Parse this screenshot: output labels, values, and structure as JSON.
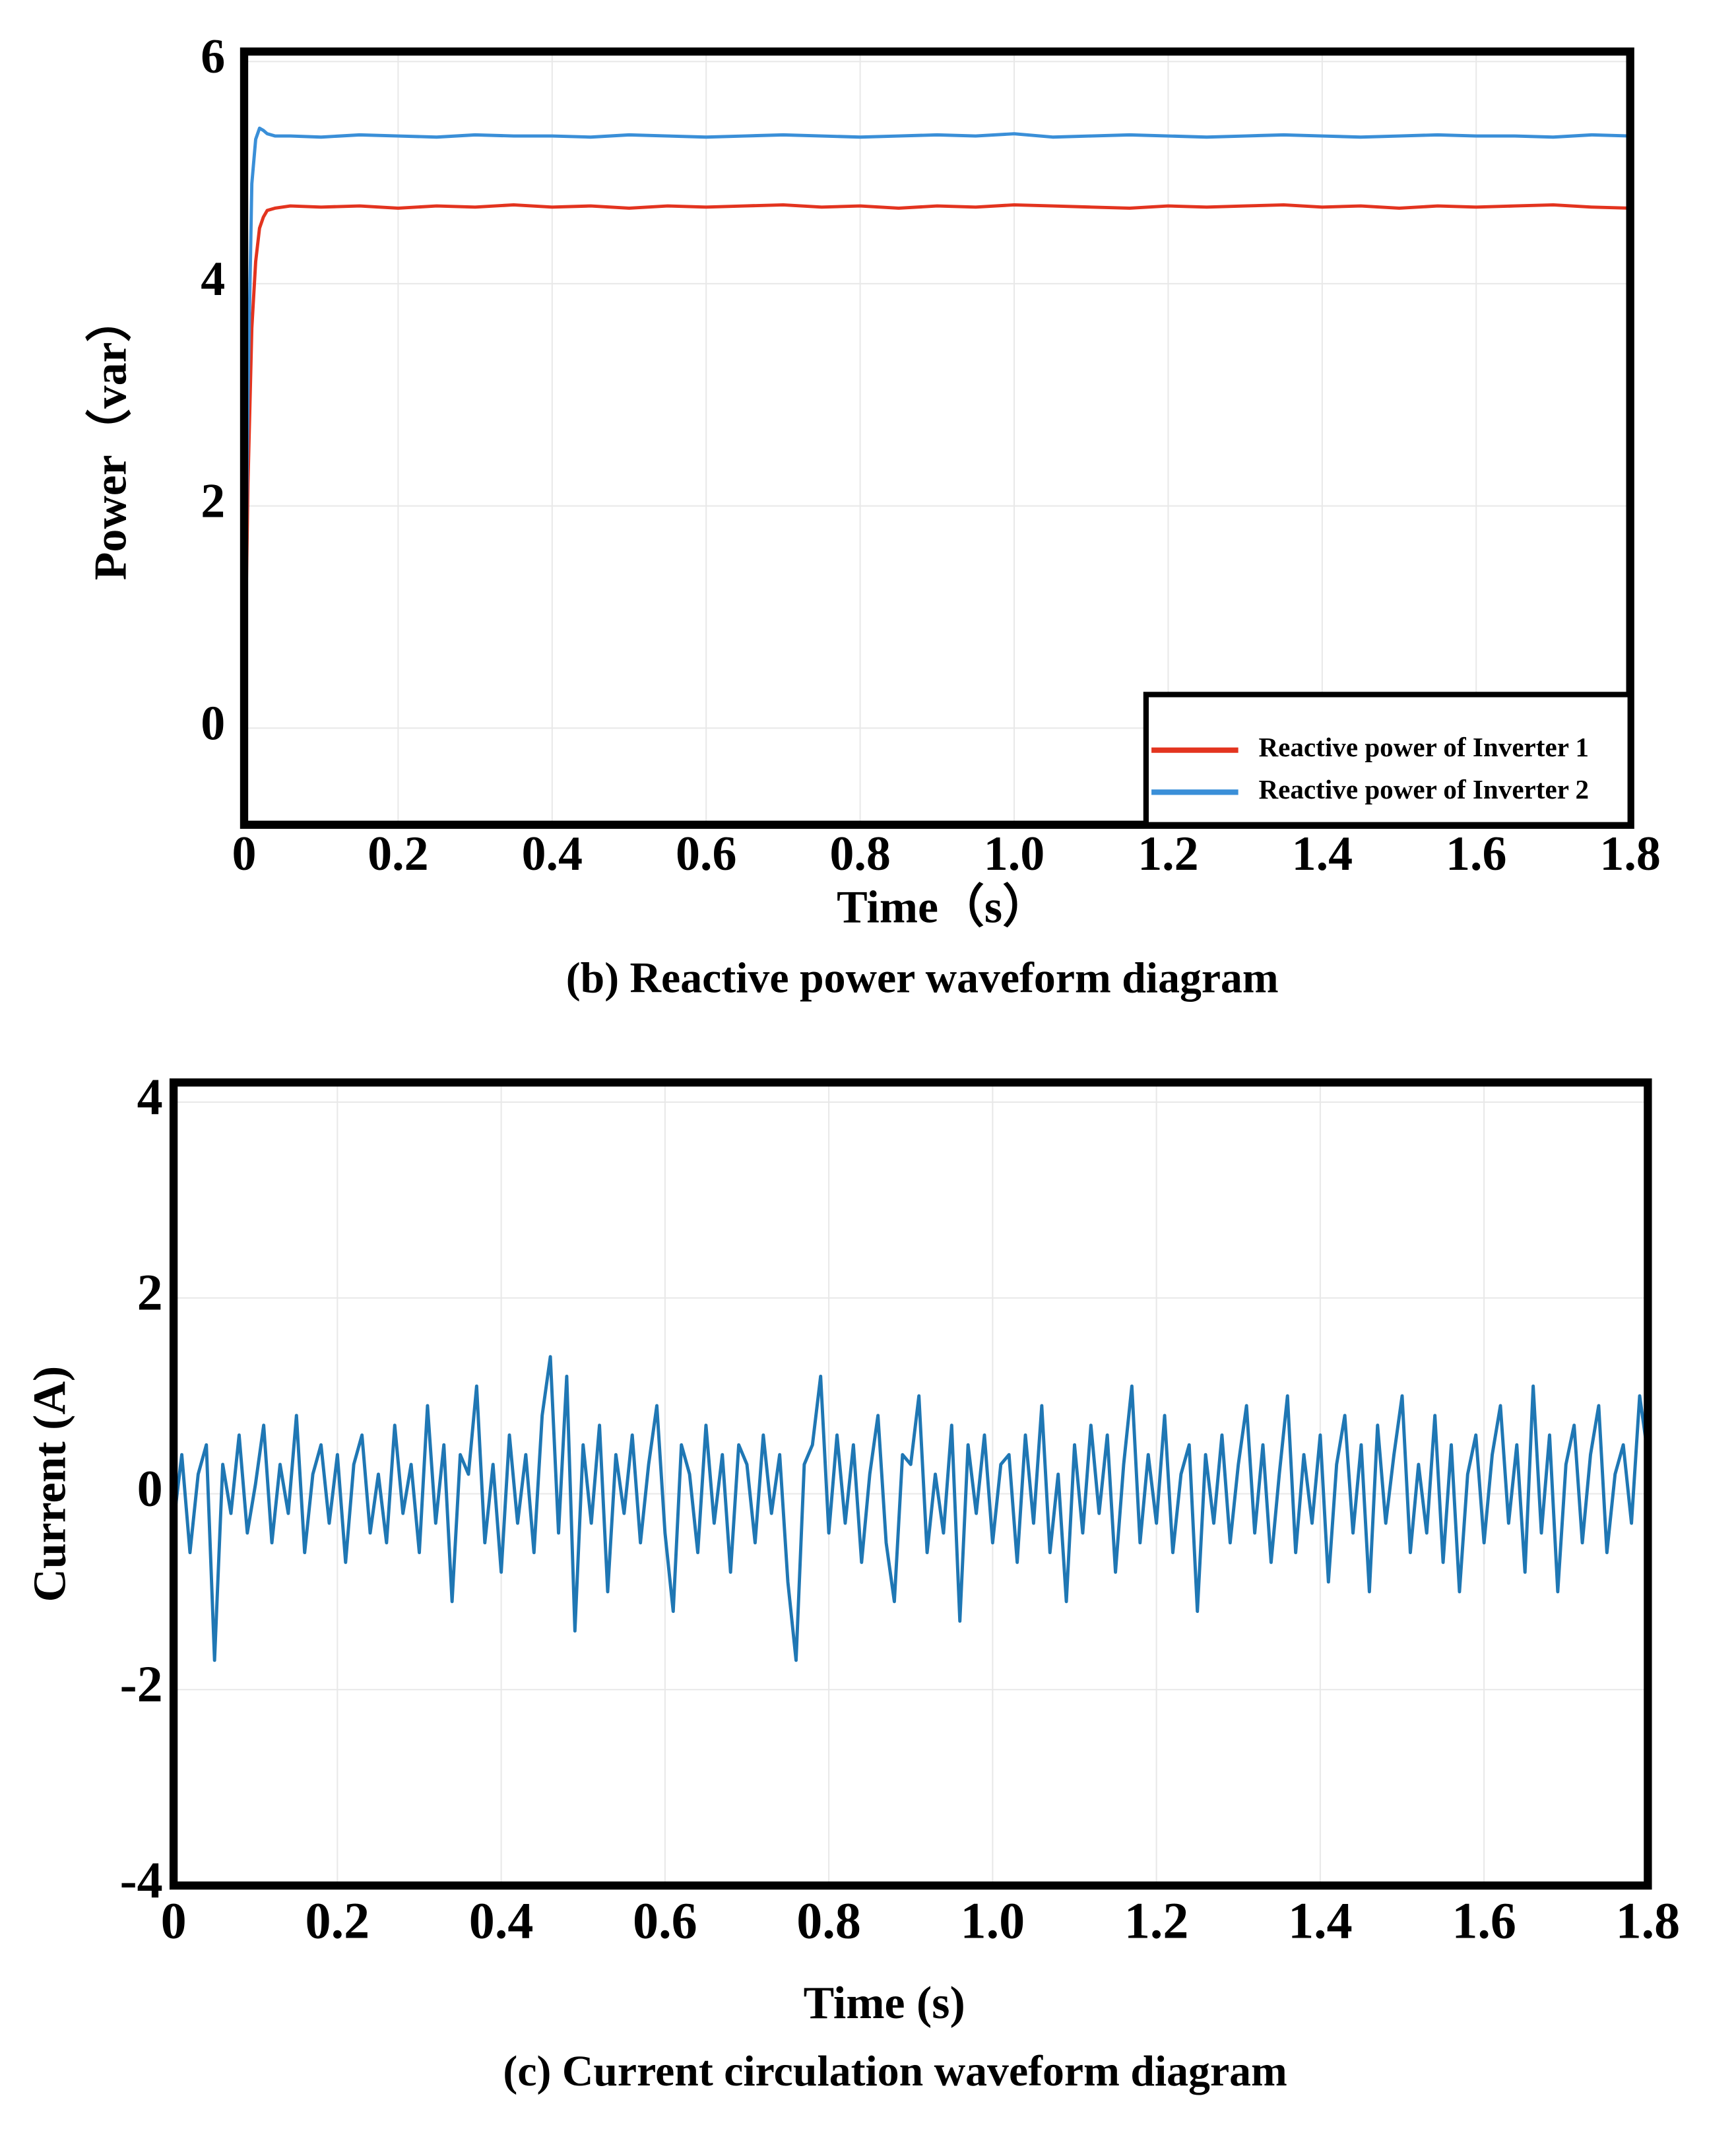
{
  "chart_data": [
    {
      "type": "line",
      "title": "(b) Reactive power waveform diagram",
      "x_label": "Time（s）",
      "y_label": "Power（var）",
      "x": [
        0,
        0.005,
        0.01,
        0.015,
        0.02,
        0.025,
        0.03,
        0.04,
        0.06,
        0.1,
        0.15,
        0.2,
        0.25,
        0.3,
        0.35,
        0.4,
        0.45,
        0.5,
        0.55,
        0.6,
        0.65,
        0.7,
        0.75,
        0.8,
        0.85,
        0.9,
        0.95,
        1.0,
        1.05,
        1.1,
        1.15,
        1.2,
        1.25,
        1.3,
        1.35,
        1.4,
        1.45,
        1.5,
        1.55,
        1.6,
        1.65,
        1.7,
        1.75,
        1.8
      ],
      "series": [
        {
          "name": "Reactive power of Inverter 1",
          "color": "#e3341f",
          "values": [
            0,
            2.2,
            3.6,
            4.2,
            4.5,
            4.6,
            4.66,
            4.68,
            4.7,
            4.69,
            4.7,
            4.68,
            4.7,
            4.69,
            4.71,
            4.69,
            4.7,
            4.68,
            4.7,
            4.69,
            4.7,
            4.71,
            4.69,
            4.7,
            4.68,
            4.7,
            4.69,
            4.71,
            4.7,
            4.69,
            4.68,
            4.7,
            4.69,
            4.7,
            4.71,
            4.69,
            4.7,
            4.68,
            4.7,
            4.69,
            4.7,
            4.71,
            4.69,
            4.68
          ]
        },
        {
          "name": "Reactive power of Inverter 2",
          "color": "#3a8fd8",
          "values": [
            0,
            3.0,
            4.9,
            5.3,
            5.4,
            5.38,
            5.35,
            5.33,
            5.33,
            5.32,
            5.34,
            5.33,
            5.32,
            5.34,
            5.33,
            5.33,
            5.32,
            5.34,
            5.33,
            5.32,
            5.33,
            5.34,
            5.33,
            5.32,
            5.33,
            5.34,
            5.33,
            5.35,
            5.32,
            5.33,
            5.34,
            5.33,
            5.32,
            5.33,
            5.34,
            5.33,
            5.32,
            5.33,
            5.34,
            5.33,
            5.33,
            5.32,
            5.34,
            5.33
          ]
        }
      ],
      "xlim": [
        0,
        1.8
      ],
      "ylim": [
        -0.87,
        6.09
      ],
      "xticks": [
        0,
        0.2,
        0.4,
        0.6,
        0.8,
        {
          "value": 1,
          "label": "1.0"
        },
        1.2,
        1.4,
        1.6,
        1.8
      ],
      "yticks": [
        0,
        2,
        4,
        6
      ],
      "grid": true,
      "legend": "lower right"
    },
    {
      "type": "line",
      "title": "(c) Current circulation waveform diagram",
      "x_label": "Time (s)",
      "y_label": "Current (A)",
      "x": [
        0,
        0.01,
        0.02,
        0.03,
        0.04,
        0.05,
        0.06,
        0.07,
        0.08,
        0.09,
        0.1,
        0.11,
        0.12,
        0.13,
        0.14,
        0.15,
        0.16,
        0.17,
        0.18,
        0.19,
        0.2,
        0.21,
        0.22,
        0.23,
        0.24,
        0.25,
        0.26,
        0.27,
        0.28,
        0.29,
        0.3,
        0.31,
        0.32,
        0.33,
        0.34,
        0.35,
        0.36,
        0.37,
        0.38,
        0.39,
        0.4,
        0.41,
        0.42,
        0.43,
        0.44,
        0.45,
        0.46,
        0.47,
        0.48,
        0.49,
        0.5,
        0.51,
        0.52,
        0.53,
        0.54,
        0.55,
        0.56,
        0.57,
        0.58,
        0.59,
        0.6,
        0.61,
        0.62,
        0.63,
        0.64,
        0.65,
        0.66,
        0.67,
        0.68,
        0.69,
        0.7,
        0.71,
        0.72,
        0.73,
        0.74,
        0.75,
        0.76,
        0.77,
        0.78,
        0.79,
        0.8,
        0.81,
        0.82,
        0.83,
        0.84,
        0.85,
        0.86,
        0.87,
        0.88,
        0.89,
        0.9,
        0.91,
        0.92,
        0.93,
        0.94,
        0.95,
        0.96,
        0.97,
        0.98,
        0.99,
        1.0,
        1.01,
        1.02,
        1.03,
        1.04,
        1.05,
        1.06,
        1.07,
        1.08,
        1.09,
        1.1,
        1.11,
        1.12,
        1.13,
        1.14,
        1.15,
        1.16,
        1.17,
        1.18,
        1.19,
        1.2,
        1.21,
        1.22,
        1.23,
        1.24,
        1.25,
        1.26,
        1.27,
        1.28,
        1.29,
        1.3,
        1.31,
        1.32,
        1.33,
        1.34,
        1.35,
        1.36,
        1.37,
        1.38,
        1.39,
        1.4,
        1.41,
        1.42,
        1.43,
        1.44,
        1.45,
        1.46,
        1.47,
        1.48,
        1.49,
        1.5,
        1.51,
        1.52,
        1.53,
        1.54,
        1.55,
        1.56,
        1.57,
        1.58,
        1.59,
        1.6,
        1.61,
        1.62,
        1.63,
        1.64,
        1.65,
        1.66,
        1.67,
        1.68,
        1.69,
        1.7,
        1.71,
        1.72,
        1.73,
        1.74,
        1.75,
        1.76,
        1.77,
        1.78,
        1.79,
        1.8
      ],
      "series": [
        {
          "color": "#1f77b4",
          "values": [
            -0.3,
            0.4,
            -0.6,
            0.2,
            0.5,
            -1.7,
            0.3,
            -0.2,
            0.6,
            -0.4,
            0.1,
            0.7,
            -0.5,
            0.3,
            -0.2,
            0.8,
            -0.6,
            0.2,
            0.5,
            -0.3,
            0.4,
            -0.7,
            0.3,
            0.6,
            -0.4,
            0.2,
            -0.5,
            0.7,
            -0.2,
            0.3,
            -0.6,
            0.9,
            -0.3,
            0.5,
            -1.1,
            0.4,
            0.2,
            1.1,
            -0.5,
            0.3,
            -0.8,
            0.6,
            -0.3,
            0.4,
            -0.6,
            0.8,
            1.4,
            -0.4,
            1.2,
            -1.4,
            0.5,
            -0.3,
            0.7,
            -1.0,
            0.4,
            -0.2,
            0.6,
            -0.5,
            0.3,
            0.9,
            -0.4,
            -1.2,
            0.5,
            0.2,
            -0.6,
            0.7,
            -0.3,
            0.4,
            -0.8,
            0.5,
            0.3,
            -0.5,
            0.6,
            -0.2,
            0.4,
            -0.9,
            -1.7,
            0.3,
            0.5,
            1.2,
            -0.4,
            0.6,
            -0.3,
            0.5,
            -0.7,
            0.2,
            0.8,
            -0.5,
            -1.1,
            0.4,
            0.3,
            1.0,
            -0.6,
            0.2,
            -0.4,
            0.7,
            -1.3,
            0.5,
            -0.2,
            0.6,
            -0.5,
            0.3,
            0.4,
            -0.7,
            0.6,
            -0.3,
            0.9,
            -0.6,
            0.2,
            -1.1,
            0.5,
            -0.4,
            0.7,
            -0.2,
            0.6,
            -0.8,
            0.3,
            1.1,
            -0.5,
            0.4,
            -0.3,
            0.8,
            -0.6,
            0.2,
            0.5,
            -1.2,
            0.4,
            -0.3,
            0.6,
            -0.5,
            0.3,
            0.9,
            -0.4,
            0.5,
            -0.7,
            0.2,
            1.0,
            -0.6,
            0.4,
            -0.3,
            0.6,
            -0.9,
            0.3,
            0.8,
            -0.4,
            0.5,
            -1.0,
            0.7,
            -0.3,
            0.4,
            1.0,
            -0.6,
            0.3,
            -0.4,
            0.8,
            -0.7,
            0.5,
            -1.0,
            0.2,
            0.6,
            -0.5,
            0.4,
            0.9,
            -0.3,
            0.5,
            -0.8,
            1.1,
            -0.4,
            0.6,
            -1.0,
            0.3,
            0.7,
            -0.5,
            0.4,
            0.9,
            -0.6,
            0.2,
            0.5,
            -0.3,
            1.0,
            0.4
          ]
        }
      ],
      "xlim": [
        0,
        1.8
      ],
      "ylim": [
        -4,
        4.2
      ],
      "xticks": [
        0,
        0.2,
        0.4,
        0.6,
        0.8,
        {
          "value": 1,
          "label": "1.0"
        },
        1.2,
        1.4,
        1.6,
        1.8
      ],
      "yticks": [
        -4,
        -2,
        0,
        2,
        4
      ],
      "grid": true
    }
  ]
}
